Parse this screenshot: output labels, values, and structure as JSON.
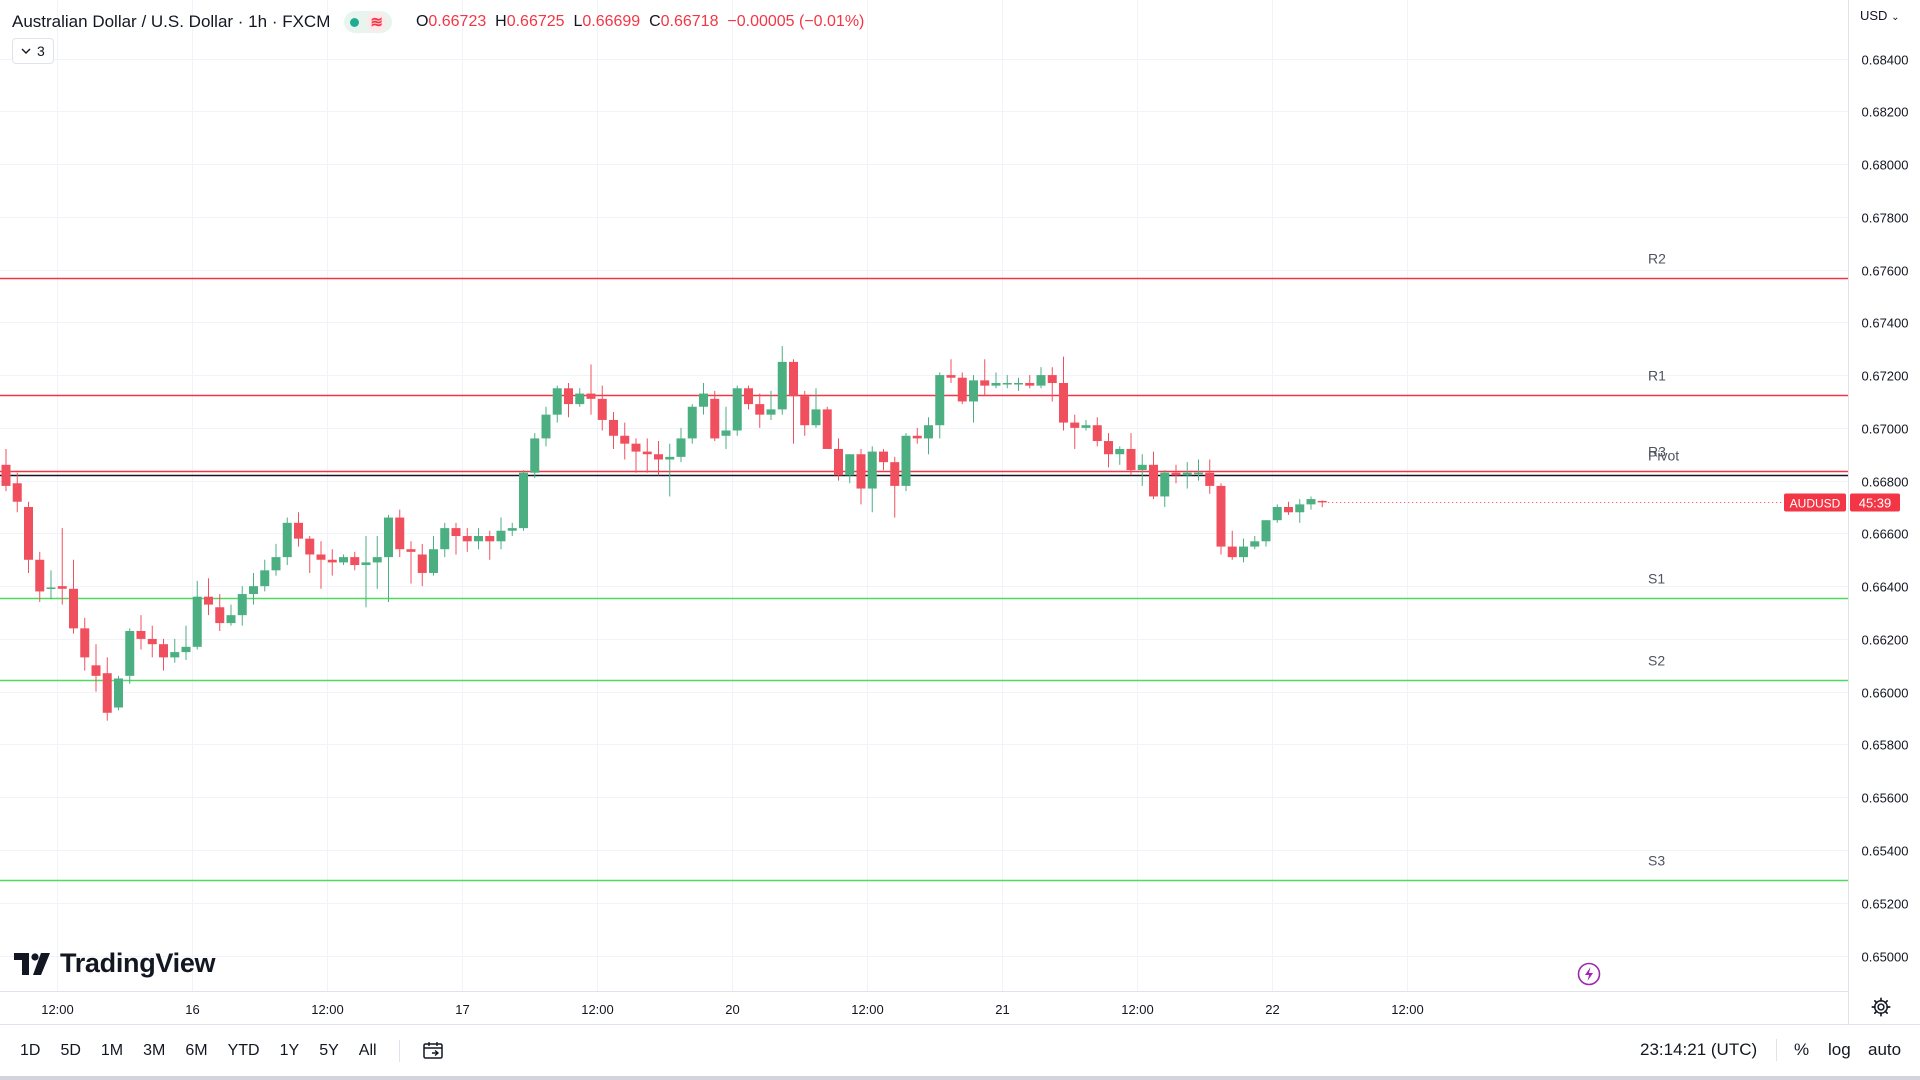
{
  "legend": {
    "symbol": "Australian Dollar / U.S. Dollar · 1h · FXCM",
    "o_label": "O",
    "o": "0.66723",
    "h_label": "H",
    "h": "0.66725",
    "l_label": "L",
    "l": "0.66699",
    "c_label": "C",
    "c": "0.66718",
    "change": "−0.00005 (−0.01%)",
    "indicator_count": "3"
  },
  "watermark": "TradingView",
  "price_axis": {
    "unit": "USD",
    "ticker_badge": "AUDUSD",
    "countdown": "45:39"
  },
  "timeframes": [
    "1D",
    "5D",
    "1M",
    "3M",
    "6M",
    "YTD",
    "1Y",
    "5Y",
    "All"
  ],
  "clock": "23:14:21 (UTC)",
  "scale_options": {
    "percent": "%",
    "log": "log",
    "auto": "auto"
  },
  "colors": {
    "up": "#4caf82",
    "down": "#f0505e",
    "resistance": "#f23645",
    "support": "#4cdb5e",
    "pivot": "#131722",
    "badge": "#f23645"
  },
  "chart_data": {
    "type": "candlestick",
    "ylim": [
      0.65,
      0.6848
    ],
    "y_ticks": [
      "0.68400",
      "0.68200",
      "0.68000",
      "0.67800",
      "0.67600",
      "0.67400",
      "0.67200",
      "0.67000",
      "0.66800",
      "0.66600",
      "0.66400",
      "0.66200",
      "0.66000",
      "0.65800",
      "0.65600",
      "0.65400",
      "0.65200",
      "0.65000"
    ],
    "x_ticks": [
      {
        "bar": 4.5,
        "label": "12:00"
      },
      {
        "bar": 16.5,
        "label": "16"
      },
      {
        "bar": 28.5,
        "label": "12:00"
      },
      {
        "bar": 40.5,
        "label": "17"
      },
      {
        "bar": 52.5,
        "label": "12:00"
      },
      {
        "bar": 64.5,
        "label": "20"
      },
      {
        "bar": 76.5,
        "label": "12:00"
      },
      {
        "bar": 88.5,
        "label": "21"
      },
      {
        "bar": 100.5,
        "label": "12:00"
      },
      {
        "bar": 112.5,
        "label": "22"
      },
      {
        "bar": 124.5,
        "label": "12:00"
      }
    ],
    "levels": [
      {
        "name": "R3",
        "value": 0.66835,
        "kind": "resistance"
      },
      {
        "name": "R2",
        "value": 0.67568,
        "kind": "resistance"
      },
      {
        "name": "R1",
        "value": 0.67123,
        "kind": "resistance"
      },
      {
        "name": "Pivot",
        "value": 0.66823,
        "kind": "pivot"
      },
      {
        "name": "S1",
        "value": 0.66355,
        "kind": "support"
      },
      {
        "name": "S2",
        "value": 0.66045,
        "kind": "support"
      },
      {
        "name": "S3",
        "value": 0.65285,
        "kind": "support"
      }
    ],
    "last_price": 0.66718,
    "candles": [
      [
        0.6686,
        0.6678,
        0.6692,
        0.6676
      ],
      [
        0.6679,
        0.6672,
        0.6683,
        0.6668
      ],
      [
        0.667,
        0.665,
        0.6672,
        0.6645
      ],
      [
        0.665,
        0.6638,
        0.6653,
        0.6634
      ],
      [
        0.6639,
        0.66395,
        0.6646,
        0.6635
      ],
      [
        0.664,
        0.6639,
        0.6662,
        0.6633
      ],
      [
        0.6639,
        0.6624,
        0.665,
        0.6622
      ],
      [
        0.6624,
        0.6613,
        0.6628,
        0.6608
      ],
      [
        0.661,
        0.6606,
        0.6618,
        0.66
      ],
      [
        0.6607,
        0.6592,
        0.6613,
        0.6589
      ],
      [
        0.6594,
        0.6605,
        0.6606,
        0.6593
      ],
      [
        0.6606,
        0.6623,
        0.6624,
        0.6603
      ],
      [
        0.6623,
        0.662,
        0.6629,
        0.6616
      ],
      [
        0.662,
        0.6618,
        0.6625,
        0.6613
      ],
      [
        0.6618,
        0.6613,
        0.662,
        0.6608
      ],
      [
        0.6613,
        0.6615,
        0.662,
        0.6611
      ],
      [
        0.6615,
        0.6617,
        0.6625,
        0.6612
      ],
      [
        0.6617,
        0.6636,
        0.6642,
        0.6616
      ],
      [
        0.6636,
        0.6633,
        0.6643,
        0.6629
      ],
      [
        0.6632,
        0.6626,
        0.6637,
        0.6623
      ],
      [
        0.6626,
        0.6629,
        0.6633,
        0.6625
      ],
      [
        0.6629,
        0.6637,
        0.664,
        0.6625
      ],
      [
        0.6637,
        0.664,
        0.6645,
        0.6633
      ],
      [
        0.664,
        0.6646,
        0.665,
        0.6638
      ],
      [
        0.6646,
        0.6651,
        0.6656,
        0.6644
      ],
      [
        0.6651,
        0.6664,
        0.6666,
        0.6648
      ],
      [
        0.6664,
        0.6658,
        0.6668,
        0.6655
      ],
      [
        0.6658,
        0.6652,
        0.6659,
        0.6645
      ],
      [
        0.6652,
        0.665,
        0.6657,
        0.6639
      ],
      [
        0.665,
        0.6649,
        0.6654,
        0.6644
      ],
      [
        0.6649,
        0.6651,
        0.6652,
        0.6648
      ],
      [
        0.6651,
        0.6648,
        0.6653,
        0.6646
      ],
      [
        0.6648,
        0.6649,
        0.6659,
        0.6632
      ],
      [
        0.6649,
        0.6651,
        0.6659,
        0.6639
      ],
      [
        0.6651,
        0.6666,
        0.6667,
        0.6634
      ],
      [
        0.6666,
        0.6654,
        0.6669,
        0.6651
      ],
      [
        0.6654,
        0.6653,
        0.6657,
        0.6641
      ],
      [
        0.6652,
        0.6645,
        0.6656,
        0.664
      ],
      [
        0.6645,
        0.6654,
        0.6659,
        0.6644
      ],
      [
        0.6654,
        0.6662,
        0.6664,
        0.6651
      ],
      [
        0.6662,
        0.6659,
        0.6664,
        0.6652
      ],
      [
        0.6659,
        0.6657,
        0.6662,
        0.6653
      ],
      [
        0.6657,
        0.6659,
        0.6662,
        0.6654
      ],
      [
        0.6659,
        0.6657,
        0.6661,
        0.665
      ],
      [
        0.6657,
        0.6661,
        0.6666,
        0.6654
      ],
      [
        0.6661,
        0.6662,
        0.6664,
        0.6659
      ],
      [
        0.6662,
        0.6683,
        0.6684,
        0.6661
      ],
      [
        0.6683,
        0.6696,
        0.6698,
        0.6681
      ],
      [
        0.6696,
        0.6705,
        0.6708,
        0.6693
      ],
      [
        0.6705,
        0.6715,
        0.6716,
        0.6702
      ],
      [
        0.6715,
        0.6709,
        0.6717,
        0.6704
      ],
      [
        0.6709,
        0.6713,
        0.6715,
        0.6708
      ],
      [
        0.6713,
        0.6711,
        0.6724,
        0.6705
      ],
      [
        0.6711,
        0.6703,
        0.6716,
        0.6699
      ],
      [
        0.6703,
        0.6697,
        0.6706,
        0.6692
      ],
      [
        0.6697,
        0.6694,
        0.6702,
        0.6688
      ],
      [
        0.6694,
        0.6691,
        0.6696,
        0.6683
      ],
      [
        0.6691,
        0.669,
        0.6696,
        0.6683
      ],
      [
        0.669,
        0.6688,
        0.6695,
        0.6682
      ],
      [
        0.6688,
        0.6689,
        0.6694,
        0.6674
      ],
      [
        0.6689,
        0.6696,
        0.67,
        0.6687
      ],
      [
        0.6696,
        0.6708,
        0.6709,
        0.6694
      ],
      [
        0.6708,
        0.6713,
        0.6717,
        0.6705
      ],
      [
        0.6711,
        0.6696,
        0.6714,
        0.6695
      ],
      [
        0.6697,
        0.6699,
        0.6708,
        0.6692
      ],
      [
        0.6699,
        0.6715,
        0.6716,
        0.6697
      ],
      [
        0.6715,
        0.6709,
        0.6716,
        0.6707
      ],
      [
        0.6709,
        0.6705,
        0.6713,
        0.67
      ],
      [
        0.6705,
        0.6707,
        0.6714,
        0.6703
      ],
      [
        0.6707,
        0.6725,
        0.6731,
        0.6705
      ],
      [
        0.6725,
        0.6712,
        0.6726,
        0.6694
      ],
      [
        0.6712,
        0.6701,
        0.6714,
        0.6697
      ],
      [
        0.6701,
        0.6707,
        0.6715,
        0.67
      ],
      [
        0.6707,
        0.6692,
        0.6708,
        0.6692
      ],
      [
        0.6692,
        0.6682,
        0.6696,
        0.668
      ],
      [
        0.6682,
        0.669,
        0.669,
        0.6679
      ],
      [
        0.669,
        0.6677,
        0.6692,
        0.6671
      ],
      [
        0.6677,
        0.6691,
        0.6693,
        0.6668
      ],
      [
        0.6691,
        0.6687,
        0.6692,
        0.6684
      ],
      [
        0.6687,
        0.6678,
        0.6689,
        0.6666
      ],
      [
        0.6678,
        0.6697,
        0.6698,
        0.6676
      ],
      [
        0.6697,
        0.6696,
        0.67,
        0.6694
      ],
      [
        0.6696,
        0.6701,
        0.6704,
        0.669
      ],
      [
        0.6701,
        0.672,
        0.6721,
        0.6696
      ],
      [
        0.672,
        0.6719,
        0.6726,
        0.6717
      ],
      [
        0.6719,
        0.671,
        0.6721,
        0.6709
      ],
      [
        0.671,
        0.6718,
        0.672,
        0.6702
      ],
      [
        0.6718,
        0.6716,
        0.6726,
        0.6712
      ],
      [
        0.6716,
        0.6717,
        0.6721,
        0.6715
      ],
      [
        0.6717,
        0.6717,
        0.672,
        0.6715
      ],
      [
        0.6717,
        0.6717,
        0.6719,
        0.6714
      ],
      [
        0.6717,
        0.6716,
        0.672,
        0.6715
      ],
      [
        0.6716,
        0.672,
        0.6723,
        0.6715
      ],
      [
        0.672,
        0.6717,
        0.6723,
        0.671
      ],
      [
        0.6717,
        0.6702,
        0.6727,
        0.6699
      ],
      [
        0.6702,
        0.67,
        0.6705,
        0.6692
      ],
      [
        0.67,
        0.6701,
        0.6703,
        0.6699
      ],
      [
        0.6701,
        0.6695,
        0.6704,
        0.6693
      ],
      [
        0.6695,
        0.669,
        0.6698,
        0.6685
      ],
      [
        0.669,
        0.6692,
        0.6693,
        0.6686
      ],
      [
        0.6692,
        0.6684,
        0.6698,
        0.6682
      ],
      [
        0.6684,
        0.6686,
        0.669,
        0.6678
      ],
      [
        0.6686,
        0.6674,
        0.6691,
        0.6673
      ],
      [
        0.6674,
        0.6683,
        0.6684,
        0.667
      ],
      [
        0.6683,
        0.6682,
        0.6686,
        0.6679
      ],
      [
        0.6682,
        0.6683,
        0.6687,
        0.6677
      ],
      [
        0.6683,
        0.6683,
        0.6688,
        0.668
      ],
      [
        0.6683,
        0.6678,
        0.6688,
        0.6675
      ],
      [
        0.6678,
        0.6655,
        0.6679,
        0.6652
      ],
      [
        0.6655,
        0.6651,
        0.6661,
        0.665
      ],
      [
        0.6651,
        0.6655,
        0.6658,
        0.6649
      ],
      [
        0.6655,
        0.6657,
        0.6659,
        0.6654
      ],
      [
        0.6657,
        0.6665,
        0.6665,
        0.6655
      ],
      [
        0.6665,
        0.667,
        0.6671,
        0.6664
      ],
      [
        0.667,
        0.6668,
        0.6672,
        0.6667
      ],
      [
        0.6668,
        0.6671,
        0.6673,
        0.6664
      ],
      [
        0.6671,
        0.6673,
        0.6674,
        0.6669
      ],
      [
        0.66723,
        0.66718,
        0.66725,
        0.66699
      ]
    ]
  }
}
